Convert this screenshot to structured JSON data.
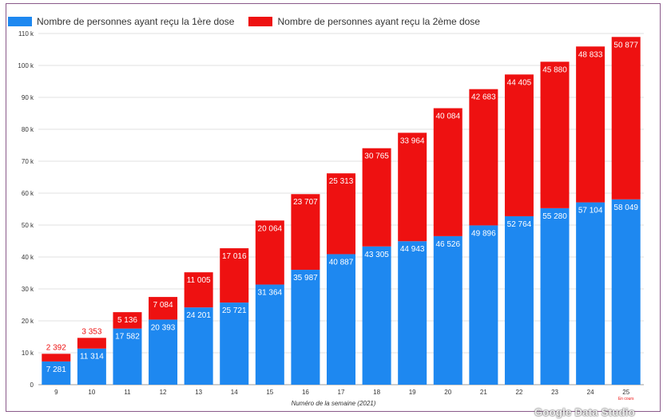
{
  "legend": {
    "first_dose": "Nombre de personnes ayant reçu la 1ère dose",
    "second_dose": "Nombre de personnes ayant reçu la 2ème dose"
  },
  "colors": {
    "first_dose": "#1e88f0",
    "second_dose": "#ee1111",
    "axis_text": "#333333",
    "grid": "#e0e0e0"
  },
  "watermark": "Google Data Studio",
  "chart_data": {
    "type": "bar",
    "stacked": true,
    "categories": [
      "9",
      "10",
      "11",
      "12",
      "13",
      "14",
      "15",
      "16",
      "17",
      "18",
      "19",
      "20",
      "21",
      "22",
      "23",
      "24",
      "25"
    ],
    "category_notes": {
      "25": "En cours"
    },
    "series": [
      {
        "name": "Nombre de personnes ayant reçu la 1ère dose",
        "values": [
          7281,
          11314,
          17582,
          20393,
          24201,
          25721,
          31364,
          35987,
          40887,
          43305,
          44943,
          46526,
          49896,
          52764,
          55280,
          57104,
          58049
        ],
        "labels": [
          "7 281",
          "11 314",
          "17 582",
          "20 393",
          "24 201",
          "25 721",
          "31 364",
          "35 987",
          "40 887",
          "43 305",
          "44 943",
          "46 526",
          "49 896",
          "52 764",
          "55 280",
          "57 104",
          "58 049"
        ]
      },
      {
        "name": "Nombre de personnes ayant reçu la 2ème dose",
        "values": [
          2392,
          3353,
          5136,
          7084,
          11005,
          17016,
          20064,
          23707,
          25313,
          30765,
          33964,
          40084,
          42683,
          44405,
          45880,
          48833,
          50877
        ],
        "labels": [
          "2 392",
          "3 353",
          "5 136",
          "7 084",
          "11 005",
          "17 016",
          "20 064",
          "23 707",
          "25 313",
          "30 765",
          "33 964",
          "40 084",
          "42 683",
          "44 405",
          "45 880",
          "48 833",
          "50 877"
        ]
      }
    ],
    "xlabel": "Numéro de la semaine (2021)",
    "ylabel": "",
    "ylim": [
      0,
      110000
    ],
    "yticks": [
      0,
      10000,
      20000,
      30000,
      40000,
      50000,
      60000,
      70000,
      80000,
      90000,
      100000,
      110000
    ],
    "ytick_labels": [
      "0",
      "10 k",
      "20 k",
      "30 k",
      "40 k",
      "50 k",
      "60 k",
      "70 k",
      "80 k",
      "90 k",
      "100 k",
      "110 k"
    ],
    "grid": true,
    "legend_position": "top-left"
  }
}
